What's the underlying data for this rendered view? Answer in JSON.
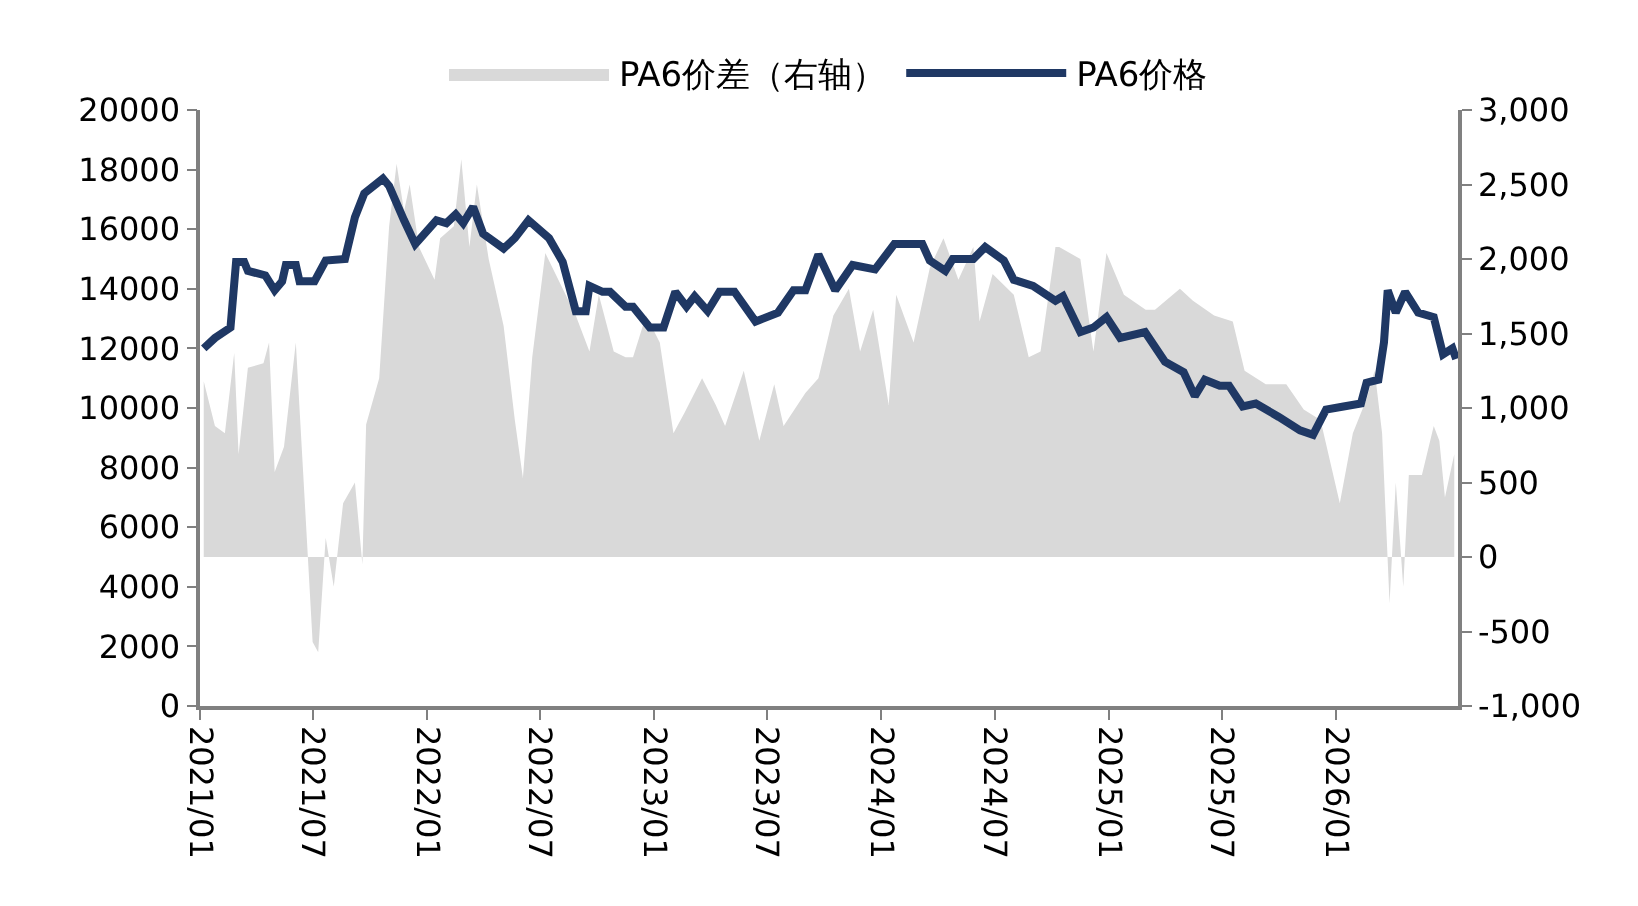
{
  "chart_data": {
    "type": "line",
    "xlim": [
      "2021-01-01",
      "2026-07-16"
    ],
    "xticks": [
      {
        "value": "2021-01-01",
        "label": "2021/01"
      },
      {
        "value": "2021-07-01",
        "label": "2021/07"
      },
      {
        "value": "2022-01-01",
        "label": "2022/01"
      },
      {
        "value": "2022-07-01",
        "label": "2022/07"
      },
      {
        "value": "2023-01-01",
        "label": "2023/01"
      },
      {
        "value": "2023-07-01",
        "label": "2023/07"
      },
      {
        "value": "2024-01-01",
        "label": "2024/01"
      },
      {
        "value": "2024-07-01",
        "label": "2024/07"
      },
      {
        "value": "2025-01-01",
        "label": "2025/01"
      },
      {
        "value": "2025-07-01",
        "label": "2025/07"
      },
      {
        "value": "2026-01-01",
        "label": "2026/01"
      }
    ],
    "ylim": [
      0,
      20000
    ],
    "yticks": [
      0,
      2000,
      4000,
      6000,
      8000,
      10000,
      12000,
      14000,
      16000,
      18000,
      20000
    ],
    "y2lim": [
      -1000,
      3000
    ],
    "y2ticks": [
      {
        "value": -1000,
        "label": "-1,000"
      },
      {
        "value": -500,
        "label": "-500"
      },
      0,
      {
        "value": 500,
        "label": "500"
      },
      {
        "value": 1000,
        "label": "1,000"
      },
      {
        "value": 1500,
        "label": "1,500"
      },
      {
        "value": 2000,
        "label": "2,000"
      },
      {
        "value": 2500,
        "label": "2,500"
      },
      {
        "value": 3000,
        "label": "3,000"
      }
    ],
    "legend": "top",
    "series": [
      {
        "name": "PA6价差（右轴）",
        "type": "area",
        "axis": "y2",
        "color": "#d9d9d9",
        "x": [
          "2021-01-07",
          "2021-01-25",
          "2021-02-10",
          "2021-02-25",
          "2021-03-04",
          "2021-03-19",
          "2021-04-13",
          "2021-04-22",
          "2021-05-01",
          "2021-05-16",
          "2021-06-04",
          "2021-06-16",
          "2021-07-01",
          "2021-07-10",
          "2021-07-22",
          "2021-08-04",
          "2021-08-19",
          "2021-09-07",
          "2021-09-19",
          "2021-09-25",
          "2021-10-16",
          "2021-11-01",
          "2021-11-13",
          "2021-11-25",
          "2021-12-04",
          "2021-12-19",
          "2022-01-13",
          "2022-01-22",
          "2022-02-13",
          "2022-02-25",
          "2022-03-10",
          "2022-03-22",
          "2022-04-10",
          "2022-05-04",
          "2022-05-22",
          "2022-06-04",
          "2022-06-19",
          "2022-07-10",
          "2022-08-07",
          "2022-08-28",
          "2022-09-19",
          "2022-10-04",
          "2022-10-28",
          "2022-11-16",
          "2022-11-28",
          "2022-12-19",
          "2023-01-10",
          "2023-02-01",
          "2023-02-19",
          "2023-03-19",
          "2023-04-10",
          "2023-04-25",
          "2023-05-25",
          "2023-06-19",
          "2023-07-13",
          "2023-07-28",
          "2023-09-01",
          "2023-09-22",
          "2023-10-16",
          "2023-11-10",
          "2023-11-28",
          "2023-12-19",
          "2024-01-13",
          "2024-01-25",
          "2024-02-22",
          "2024-03-19",
          "2024-04-10",
          "2024-05-04",
          "2024-05-28",
          "2024-06-07",
          "2024-06-28",
          "2024-08-01",
          "2024-08-25",
          "2024-09-13",
          "2024-10-07",
          "2024-10-13",
          "2024-11-16",
          "2024-12-07",
          "2024-12-28",
          "2025-01-25",
          "2025-03-01",
          "2025-03-16",
          "2025-04-25",
          "2025-05-16",
          "2025-06-19",
          "2025-07-19",
          "2025-08-07",
          "2025-09-10",
          "2025-10-13",
          "2025-11-10",
          "2025-12-07",
          "2026-01-07",
          "2026-01-28",
          "2026-02-19",
          "2026-03-04",
          "2026-03-16",
          "2026-03-28",
          "2026-04-07",
          "2026-04-19",
          "2026-04-28",
          "2026-05-19",
          "2026-06-07",
          "2026-06-16",
          "2026-06-25",
          "2026-07-10"
        ],
        "values": [
          1180,
          880,
          830,
          1370,
          690,
          1270,
          1300,
          1440,
          570,
          740,
          1440,
          550,
          -570,
          -640,
          130,
          -200,
          360,
          500,
          -50,
          890,
          1200,
          2220,
          2640,
          2320,
          2500,
          2080,
          1860,
          2140,
          2220,
          2670,
          2080,
          2500,
          2000,
          1550,
          920,
          530,
          1340,
          2040,
          1800,
          1620,
          1380,
          1760,
          1380,
          1340,
          1340,
          1620,
          1440,
          830,
          970,
          1200,
          1020,
          880,
          1250,
          780,
          1160,
          880,
          1100,
          1200,
          1620,
          1800,
          1380,
          1660,
          1020,
          1760,
          1440,
          1940,
          2140,
          1860,
          2080,
          1580,
          1900,
          1760,
          1340,
          1380,
          2080,
          2080,
          2000,
          1380,
          2040,
          1760,
          1660,
          1660,
          1800,
          1720,
          1620,
          1580,
          1250,
          1160,
          1160,
          990,
          920,
          360,
          830,
          1060,
          1250,
          830,
          -310,
          500,
          -200,
          550,
          550,
          880,
          780,
          400,
          690
        ]
      },
      {
        "name": "PA6价格",
        "color": "#1f3864",
        "x": [
          "2021-01-07",
          "2021-01-25",
          "2021-02-19",
          "2021-02-28",
          "2021-03-13",
          "2021-03-19",
          "2021-04-16",
          "2021-05-01",
          "2021-05-13",
          "2021-05-19",
          "2021-06-04",
          "2021-06-10",
          "2021-07-04",
          "2021-07-22",
          "2021-08-22",
          "2021-09-07",
          "2021-09-22",
          "2021-10-22",
          "2021-11-01",
          "2021-11-25",
          "2021-12-13",
          "2022-01-16",
          "2022-02-01",
          "2022-02-16",
          "2022-02-28",
          "2022-03-16",
          "2022-04-01",
          "2022-05-04",
          "2022-05-22",
          "2022-06-13",
          "2022-07-16",
          "2022-08-07",
          "2022-08-28",
          "2022-09-13",
          "2022-09-19",
          "2022-10-10",
          "2022-10-22",
          "2022-11-16",
          "2022-11-28",
          "2022-12-25",
          "2023-01-16",
          "2023-02-04",
          "2023-02-22",
          "2023-03-07",
          "2023-03-28",
          "2023-04-16",
          "2023-05-10",
          "2023-06-13",
          "2023-07-19",
          "2023-08-13",
          "2023-09-01",
          "2023-09-22",
          "2023-10-19",
          "2023-11-16",
          "2023-12-22",
          "2024-01-22",
          "2024-03-07",
          "2024-03-19",
          "2024-04-13",
          "2024-04-25",
          "2024-05-28",
          "2024-06-16",
          "2024-07-16",
          "2024-08-01",
          "2024-09-01",
          "2024-10-07",
          "2024-10-19",
          "2024-11-16",
          "2024-12-07",
          "2024-12-28",
          "2025-01-19",
          "2025-02-28",
          "2025-04-01",
          "2025-05-01",
          "2025-05-19",
          "2025-06-04",
          "2025-06-28",
          "2025-07-13",
          "2025-08-04",
          "2025-08-25",
          "2025-10-01",
          "2025-11-04",
          "2025-11-25",
          "2025-12-16",
          "2026-01-13",
          "2026-02-10",
          "2026-02-19",
          "2026-03-10",
          "2026-03-19",
          "2026-03-25",
          "2026-04-07",
          "2026-04-22",
          "2026-05-13",
          "2026-06-07",
          "2026-06-22",
          "2026-07-07",
          "2026-07-13"
        ],
        "values": [
          12000,
          12350,
          12700,
          14900,
          14900,
          14600,
          14450,
          13950,
          14250,
          14800,
          14800,
          14250,
          14250,
          14950,
          15000,
          16400,
          17200,
          17700,
          17450,
          16300,
          15500,
          16300,
          16200,
          16500,
          16200,
          16750,
          15850,
          15350,
          15700,
          16300,
          15700,
          14900,
          13250,
          13250,
          14100,
          13900,
          13900,
          13400,
          13400,
          12700,
          12700,
          13900,
          13400,
          13750,
          13250,
          13900,
          13900,
          12900,
          13200,
          13950,
          13950,
          15150,
          13950,
          14800,
          14650,
          15500,
          15500,
          14950,
          14600,
          15000,
          15000,
          15400,
          14950,
          14300,
          14100,
          13600,
          13750,
          12550,
          12700,
          13050,
          12350,
          12550,
          11550,
          11200,
          10400,
          10950,
          10750,
          10750,
          10050,
          10150,
          9700,
          9250,
          9100,
          9950,
          10050,
          10150,
          10850,
          10950,
          12200,
          13950,
          13200,
          13900,
          13200,
          13050,
          11800,
          12000,
          11650
        ]
      }
    ]
  }
}
